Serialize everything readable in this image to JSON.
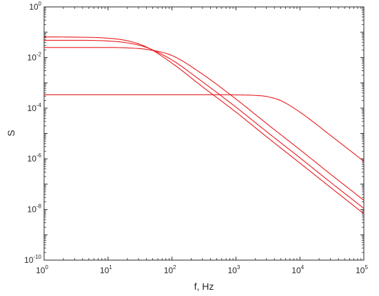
{
  "chart_data": {
    "type": "line",
    "xscale": "log",
    "yscale": "log",
    "xlabel": "f, Hz",
    "ylabel": "S",
    "xlim": [
      1,
      100000
    ],
    "ylim": [
      1e-10,
      1
    ],
    "grid": false,
    "line_color": "#e8191c",
    "x_ticks": [
      {
        "base": "10",
        "exp": "0",
        "value": 1
      },
      {
        "base": "10",
        "exp": "1",
        "value": 10
      },
      {
        "base": "10",
        "exp": "2",
        "value": 100
      },
      {
        "base": "10",
        "exp": "3",
        "value": 1000
      },
      {
        "base": "10",
        "exp": "4",
        "value": 10000
      },
      {
        "base": "10",
        "exp": "5",
        "value": 100000
      }
    ],
    "y_ticks": [
      {
        "base": "10",
        "exp": "0",
        "value": 1
      },
      {
        "base": "10",
        "exp": "-2",
        "value": 0.01
      },
      {
        "base": "10",
        "exp": "-4",
        "value": 0.0001
      },
      {
        "base": "10",
        "exp": "-6",
        "value": 1e-06
      },
      {
        "base": "10",
        "exp": "-8",
        "value": 1e-08
      },
      {
        "base": "10",
        "exp": "-10",
        "value": 1e-10
      }
    ],
    "series": [
      {
        "x": [
          1,
          3,
          10,
          20,
          40,
          100,
          300,
          1000,
          3000,
          10000,
          30000,
          100000
        ],
        "y": [
          0.065,
          0.064,
          0.058,
          0.046,
          0.026,
          0.006,
          0.0007,
          7e-05,
          7.5e-06,
          6.8e-07,
          7.5e-08,
          6.8e-09
        ]
      },
      {
        "x": [
          1,
          3,
          10,
          20,
          40,
          100,
          300,
          1000,
          3000,
          10000,
          30000,
          100000
        ],
        "y": [
          0.048,
          0.048,
          0.045,
          0.038,
          0.025,
          0.008,
          0.0011,
          0.00011,
          1.2e-05,
          1.1e-06,
          1.2e-07,
          1.1e-08
        ]
      },
      {
        "x": [
          1,
          3,
          10,
          20,
          40,
          100,
          300,
          1000,
          3000,
          10000,
          30000,
          100000
        ],
        "y": [
          0.025,
          0.025,
          0.025,
          0.024,
          0.021,
          0.012,
          0.0022,
          0.00023,
          2.5e-05,
          2.3e-06,
          2.5e-07,
          2.3e-08
        ]
      },
      {
        "x": [
          1,
          10,
          100,
          500,
          1000,
          2000,
          3000,
          5000,
          10000,
          30000,
          100000
        ],
        "y": [
          0.00034,
          0.00034,
          0.00034,
          0.00034,
          0.000335,
          0.00032,
          0.00029,
          0.0002,
          7e-05,
          8.5e-06,
          8e-07
        ]
      }
    ]
  }
}
